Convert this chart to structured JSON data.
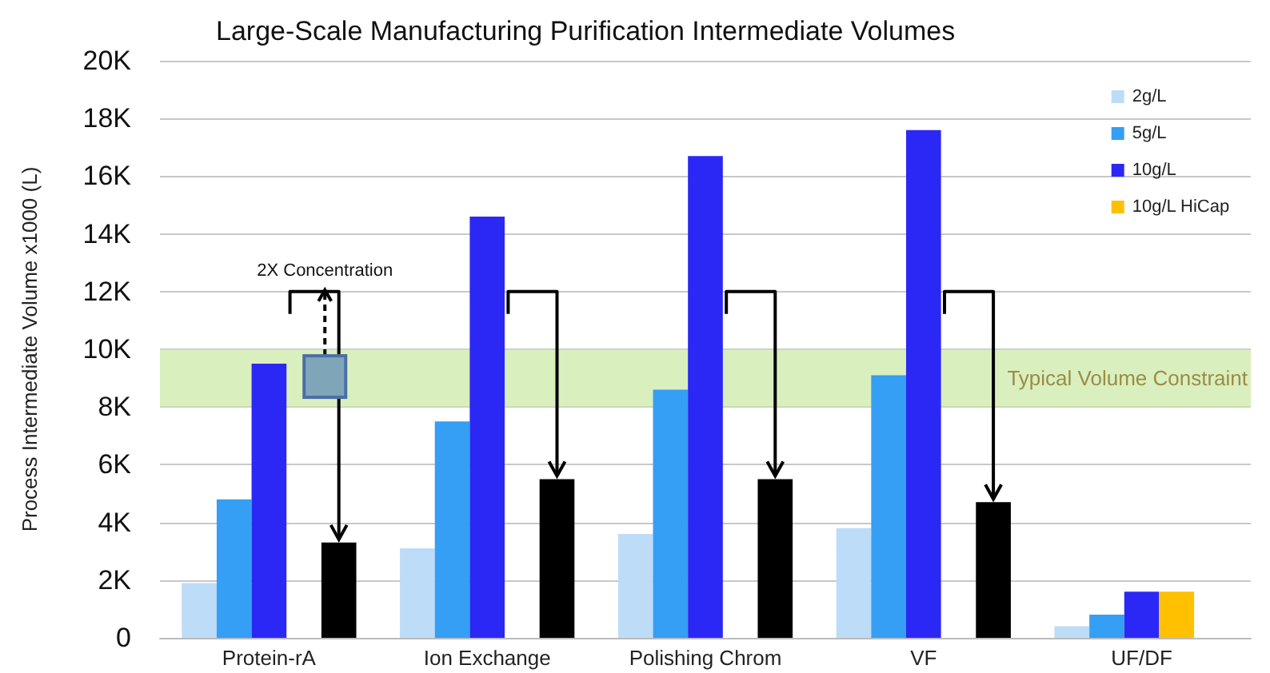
{
  "chart_data": {
    "type": "bar",
    "title": "Large-Scale Manufacturing Purification Intermediate Volumes",
    "ylabel": "Process Intermediate Volume x1000 (L)",
    "categories": [
      "Protein-rA",
      "Ion Exchange",
      "Polishing Chrom",
      "VF",
      "UF/DF"
    ],
    "series": [
      {
        "name": "2g/L",
        "color": "#bddcf8",
        "values": [
          1900,
          3100,
          3600,
          3800,
          400
        ]
      },
      {
        "name": "5g/L",
        "color": "#359ef5",
        "values": [
          4800,
          7500,
          8600,
          9100,
          800
        ]
      },
      {
        "name": "10g/L",
        "color": "#2b28f5",
        "values": [
          9500,
          14600,
          16700,
          17600,
          1600
        ]
      },
      {
        "name": "10g/L HiCap",
        "color": "#ffc000",
        "values": [
          null,
          null,
          null,
          null,
          1600
        ]
      },
      {
        "color": "#000000",
        "values": [
          3300,
          5500,
          5500,
          4700,
          null
        ]
      }
    ],
    "ylim": [
      0,
      20000
    ],
    "yticks": [
      {
        "value": 0,
        "label": "0"
      },
      {
        "value": 2000,
        "label": "2K"
      },
      {
        "value": 4000,
        "label": "4K"
      },
      {
        "value": 6000,
        "label": "6K"
      },
      {
        "value": 8000,
        "label": "8K"
      },
      {
        "value": 10000,
        "label": "10K"
      },
      {
        "value": 12000,
        "label": "12K"
      },
      {
        "value": 14000,
        "label": "14K"
      },
      {
        "value": 16000,
        "label": "16K"
      },
      {
        "value": 18000,
        "label": "18K"
      },
      {
        "value": 20000,
        "label": "20K"
      }
    ],
    "bands": [
      {
        "axis": "y",
        "from": 8000,
        "to": 10000,
        "label": "Typical Volume Constraint",
        "color": "#cde9a8"
      }
    ],
    "annotations": [
      "2X Concentration"
    ],
    "grid": "y",
    "legend": "top right"
  }
}
